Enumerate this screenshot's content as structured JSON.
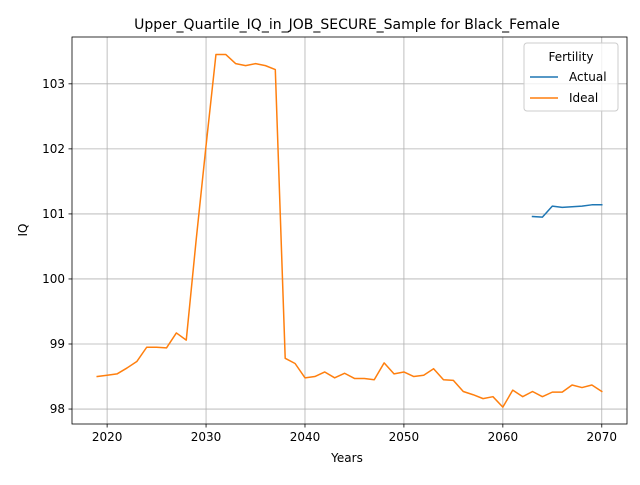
{
  "chart_data": {
    "type": "line",
    "title": "Upper_Quartile_IQ_in_JOB_SECURE_Sample for Black_Female",
    "xlabel": "Years",
    "ylabel": "IQ",
    "xlim": [
      2016.45,
      2072.55
    ],
    "ylim": [
      97.77,
      103.72
    ],
    "xticks": [
      2020,
      2030,
      2040,
      2050,
      2060,
      2070
    ],
    "yticks": [
      98,
      99,
      100,
      101,
      102,
      103
    ],
    "grid": true,
    "legend": {
      "title": "Fertility",
      "position": "top-right",
      "entries": [
        "Actual",
        "Ideal"
      ]
    },
    "series": [
      {
        "name": "Actual",
        "color": "#1f77b4",
        "x": [
          2063,
          2064,
          2065,
          2066,
          2067,
          2068,
          2069,
          2070
        ],
        "y": [
          100.96,
          100.95,
          101.12,
          101.1,
          101.11,
          101.12,
          101.14,
          101.14
        ]
      },
      {
        "name": "Ideal",
        "color": "#ff7f0e",
        "x": [
          2019,
          2020,
          2021,
          2022,
          2023,
          2024,
          2025,
          2026,
          2027,
          2028,
          2029,
          2030,
          2031,
          2032,
          2033,
          2034,
          2035,
          2036,
          2037,
          2038,
          2039,
          2040,
          2041,
          2042,
          2043,
          2044,
          2045,
          2046,
          2047,
          2048,
          2049,
          2050,
          2051,
          2052,
          2053,
          2054,
          2055,
          2056,
          2057,
          2058,
          2059,
          2060,
          2061,
          2062,
          2063,
          2064,
          2065,
          2066,
          2067,
          2068,
          2069,
          2070
        ],
        "y": [
          98.5,
          98.52,
          98.54,
          98.63,
          98.73,
          98.95,
          98.95,
          98.94,
          99.17,
          99.06,
          100.6,
          102.05,
          103.45,
          103.45,
          103.31,
          103.28,
          103.31,
          103.28,
          103.22,
          98.78,
          98.7,
          98.48,
          98.5,
          98.57,
          98.48,
          98.55,
          98.47,
          98.47,
          98.45,
          98.71,
          98.54,
          98.57,
          98.5,
          98.52,
          98.62,
          98.45,
          98.44,
          98.27,
          98.22,
          98.16,
          98.19,
          98.03,
          98.29,
          98.19,
          98.27,
          98.19,
          98.26,
          98.26,
          98.37,
          98.33,
          98.37,
          98.27
        ]
      }
    ]
  }
}
